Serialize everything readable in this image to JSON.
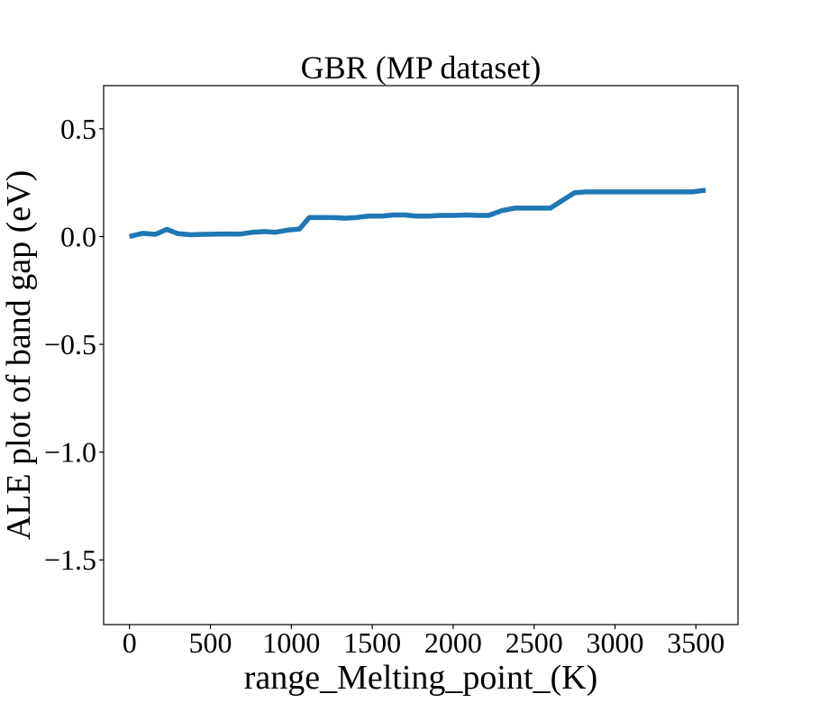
{
  "chart_data": {
    "type": "line",
    "title": "GBR (MP dataset)",
    "xlabel": "range_Melting_point_(K)",
    "ylabel": "ALE plot of band gap (eV)",
    "xlim": [
      -160,
      3760
    ],
    "ylim": [
      -1.8,
      0.7
    ],
    "xticks": [
      0,
      500,
      1000,
      1500,
      2000,
      2500,
      3000,
      3500
    ],
    "xtick_labels": [
      "0",
      "500",
      "1000",
      "1500",
      "2000",
      "2500",
      "3000",
      "3500"
    ],
    "yticks": [
      0.5,
      0.0,
      -0.5,
      -1.0,
      -1.5
    ],
    "ytick_labels": [
      "0.5",
      "0.0",
      "−0.5",
      "−1.0",
      "−1.5"
    ],
    "grid": false,
    "series": [
      {
        "color": "#1f77b4",
        "x": [
          0,
          80,
          160,
          230,
          300,
          380,
          460,
          540,
          620,
          680,
          760,
          840,
          900,
          980,
          1050,
          1110,
          1180,
          1260,
          1330,
          1400,
          1480,
          1560,
          1630,
          1700,
          1770,
          1850,
          1920,
          2000,
          2080,
          2150,
          2220,
          2300,
          2380,
          2460,
          2530,
          2600,
          2680,
          2750,
          2820,
          2900,
          3000,
          3100,
          3200,
          3300,
          3400,
          3480,
          3560
        ],
        "y": [
          0.0,
          0.015,
          0.01,
          0.033,
          0.013,
          0.008,
          0.01,
          0.011,
          0.012,
          0.011,
          0.02,
          0.023,
          0.02,
          0.03,
          0.035,
          0.088,
          0.088,
          0.088,
          0.085,
          0.088,
          0.095,
          0.095,
          0.1,
          0.1,
          0.095,
          0.095,
          0.098,
          0.098,
          0.1,
          0.098,
          0.098,
          0.12,
          0.132,
          0.132,
          0.132,
          0.132,
          0.17,
          0.203,
          0.207,
          0.207,
          0.207,
          0.207,
          0.207,
          0.207,
          0.207,
          0.207,
          0.215
        ]
      }
    ]
  }
}
